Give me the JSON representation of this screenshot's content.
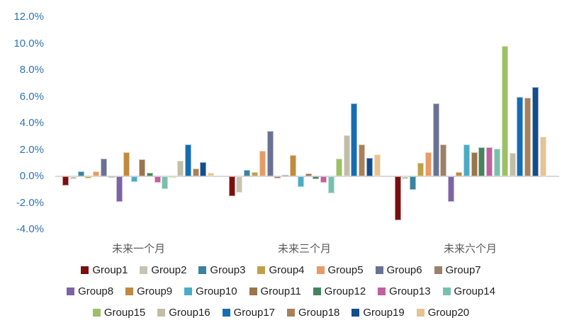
{
  "chart_data": {
    "type": "bar",
    "title": "",
    "categories": [
      "未来一个月",
      "未来三个月",
      "未来六个月"
    ],
    "unit": "%",
    "ylim": [
      -4,
      12
    ],
    "grid": false,
    "legend_position": "bottom",
    "legend_row_counts": [
      7,
      7,
      6
    ],
    "y_ticks": [
      {
        "value": 12,
        "label": "12.0%"
      },
      {
        "value": 10,
        "label": "10.0%"
      },
      {
        "value": 8,
        "label": "8.0%"
      },
      {
        "value": 6,
        "label": "6.0%"
      },
      {
        "value": 4,
        "label": "4.0%"
      },
      {
        "value": 2,
        "label": "2.0%"
      },
      {
        "value": 0,
        "label": "0.0%"
      },
      {
        "value": -2,
        "label": "-2.0%"
      },
      {
        "value": -4,
        "label": "-4.0%"
      }
    ],
    "series": [
      {
        "name": "Group1",
        "color": "#7B0F0E",
        "values": [
          -0.7,
          -1.5,
          -3.3
        ]
      },
      {
        "name": "Group2",
        "color": "#C7C4B4",
        "values": [
          -0.2,
          -1.2,
          -0.2
        ]
      },
      {
        "name": "Group3",
        "color": "#38839E",
        "values": [
          0.4,
          0.5,
          -1.0
        ]
      },
      {
        "name": "Group4",
        "color": "#BFA04A",
        "values": [
          -0.15,
          0.3,
          1.0
        ]
      },
      {
        "name": "Group5",
        "color": "#E89B66",
        "values": [
          0.35,
          1.9,
          1.8
        ]
      },
      {
        "name": "Group6",
        "color": "#6A7293",
        "values": [
          1.35,
          3.4,
          5.5
        ]
      },
      {
        "name": "Group7",
        "color": "#9A8168",
        "values": [
          -0.05,
          -0.15,
          2.4
        ]
      },
      {
        "name": "Group8",
        "color": "#7D63A5",
        "values": [
          -1.9,
          0.1,
          -1.9
        ]
      },
      {
        "name": "Group9",
        "color": "#C08A3E",
        "values": [
          1.8,
          1.6,
          0.3
        ]
      },
      {
        "name": "Group10",
        "color": "#4BACC6",
        "values": [
          -0.4,
          -0.8,
          2.4
        ]
      },
      {
        "name": "Group11",
        "color": "#9A744C",
        "values": [
          1.3,
          0.2,
          1.8
        ]
      },
      {
        "name": "Group12",
        "color": "#47815D",
        "values": [
          0.25,
          -0.2,
          2.2
        ]
      },
      {
        "name": "Group13",
        "color": "#C0609F",
        "values": [
          -0.5,
          -0.5,
          2.2
        ]
      },
      {
        "name": "Group14",
        "color": "#79C0AC",
        "values": [
          -0.95,
          -1.3,
          2.1
        ]
      },
      {
        "name": "Group15",
        "color": "#9CC066",
        "values": [
          -0.1,
          1.35,
          9.8
        ]
      },
      {
        "name": "Group16",
        "color": "#C2BDA6",
        "values": [
          1.2,
          3.1,
          1.75
        ]
      },
      {
        "name": "Group17",
        "color": "#156DB2",
        "values": [
          2.4,
          5.5,
          6.0
        ]
      },
      {
        "name": "Group18",
        "color": "#A98058",
        "values": [
          0.6,
          2.4,
          5.9
        ]
      },
      {
        "name": "Group19",
        "color": "#134D8C",
        "values": [
          1.05,
          1.4,
          6.7
        ]
      },
      {
        "name": "Group20",
        "color": "#E5C491",
        "values": [
          0.25,
          1.65,
          3.0
        ]
      }
    ]
  },
  "styles": {
    "background": "#FFFFFF",
    "axis_label_color": "#2E74B5",
    "category_label_color": "#595959",
    "axis_line_color": "#D9D9D9",
    "legend_text_color": "#212121"
  }
}
